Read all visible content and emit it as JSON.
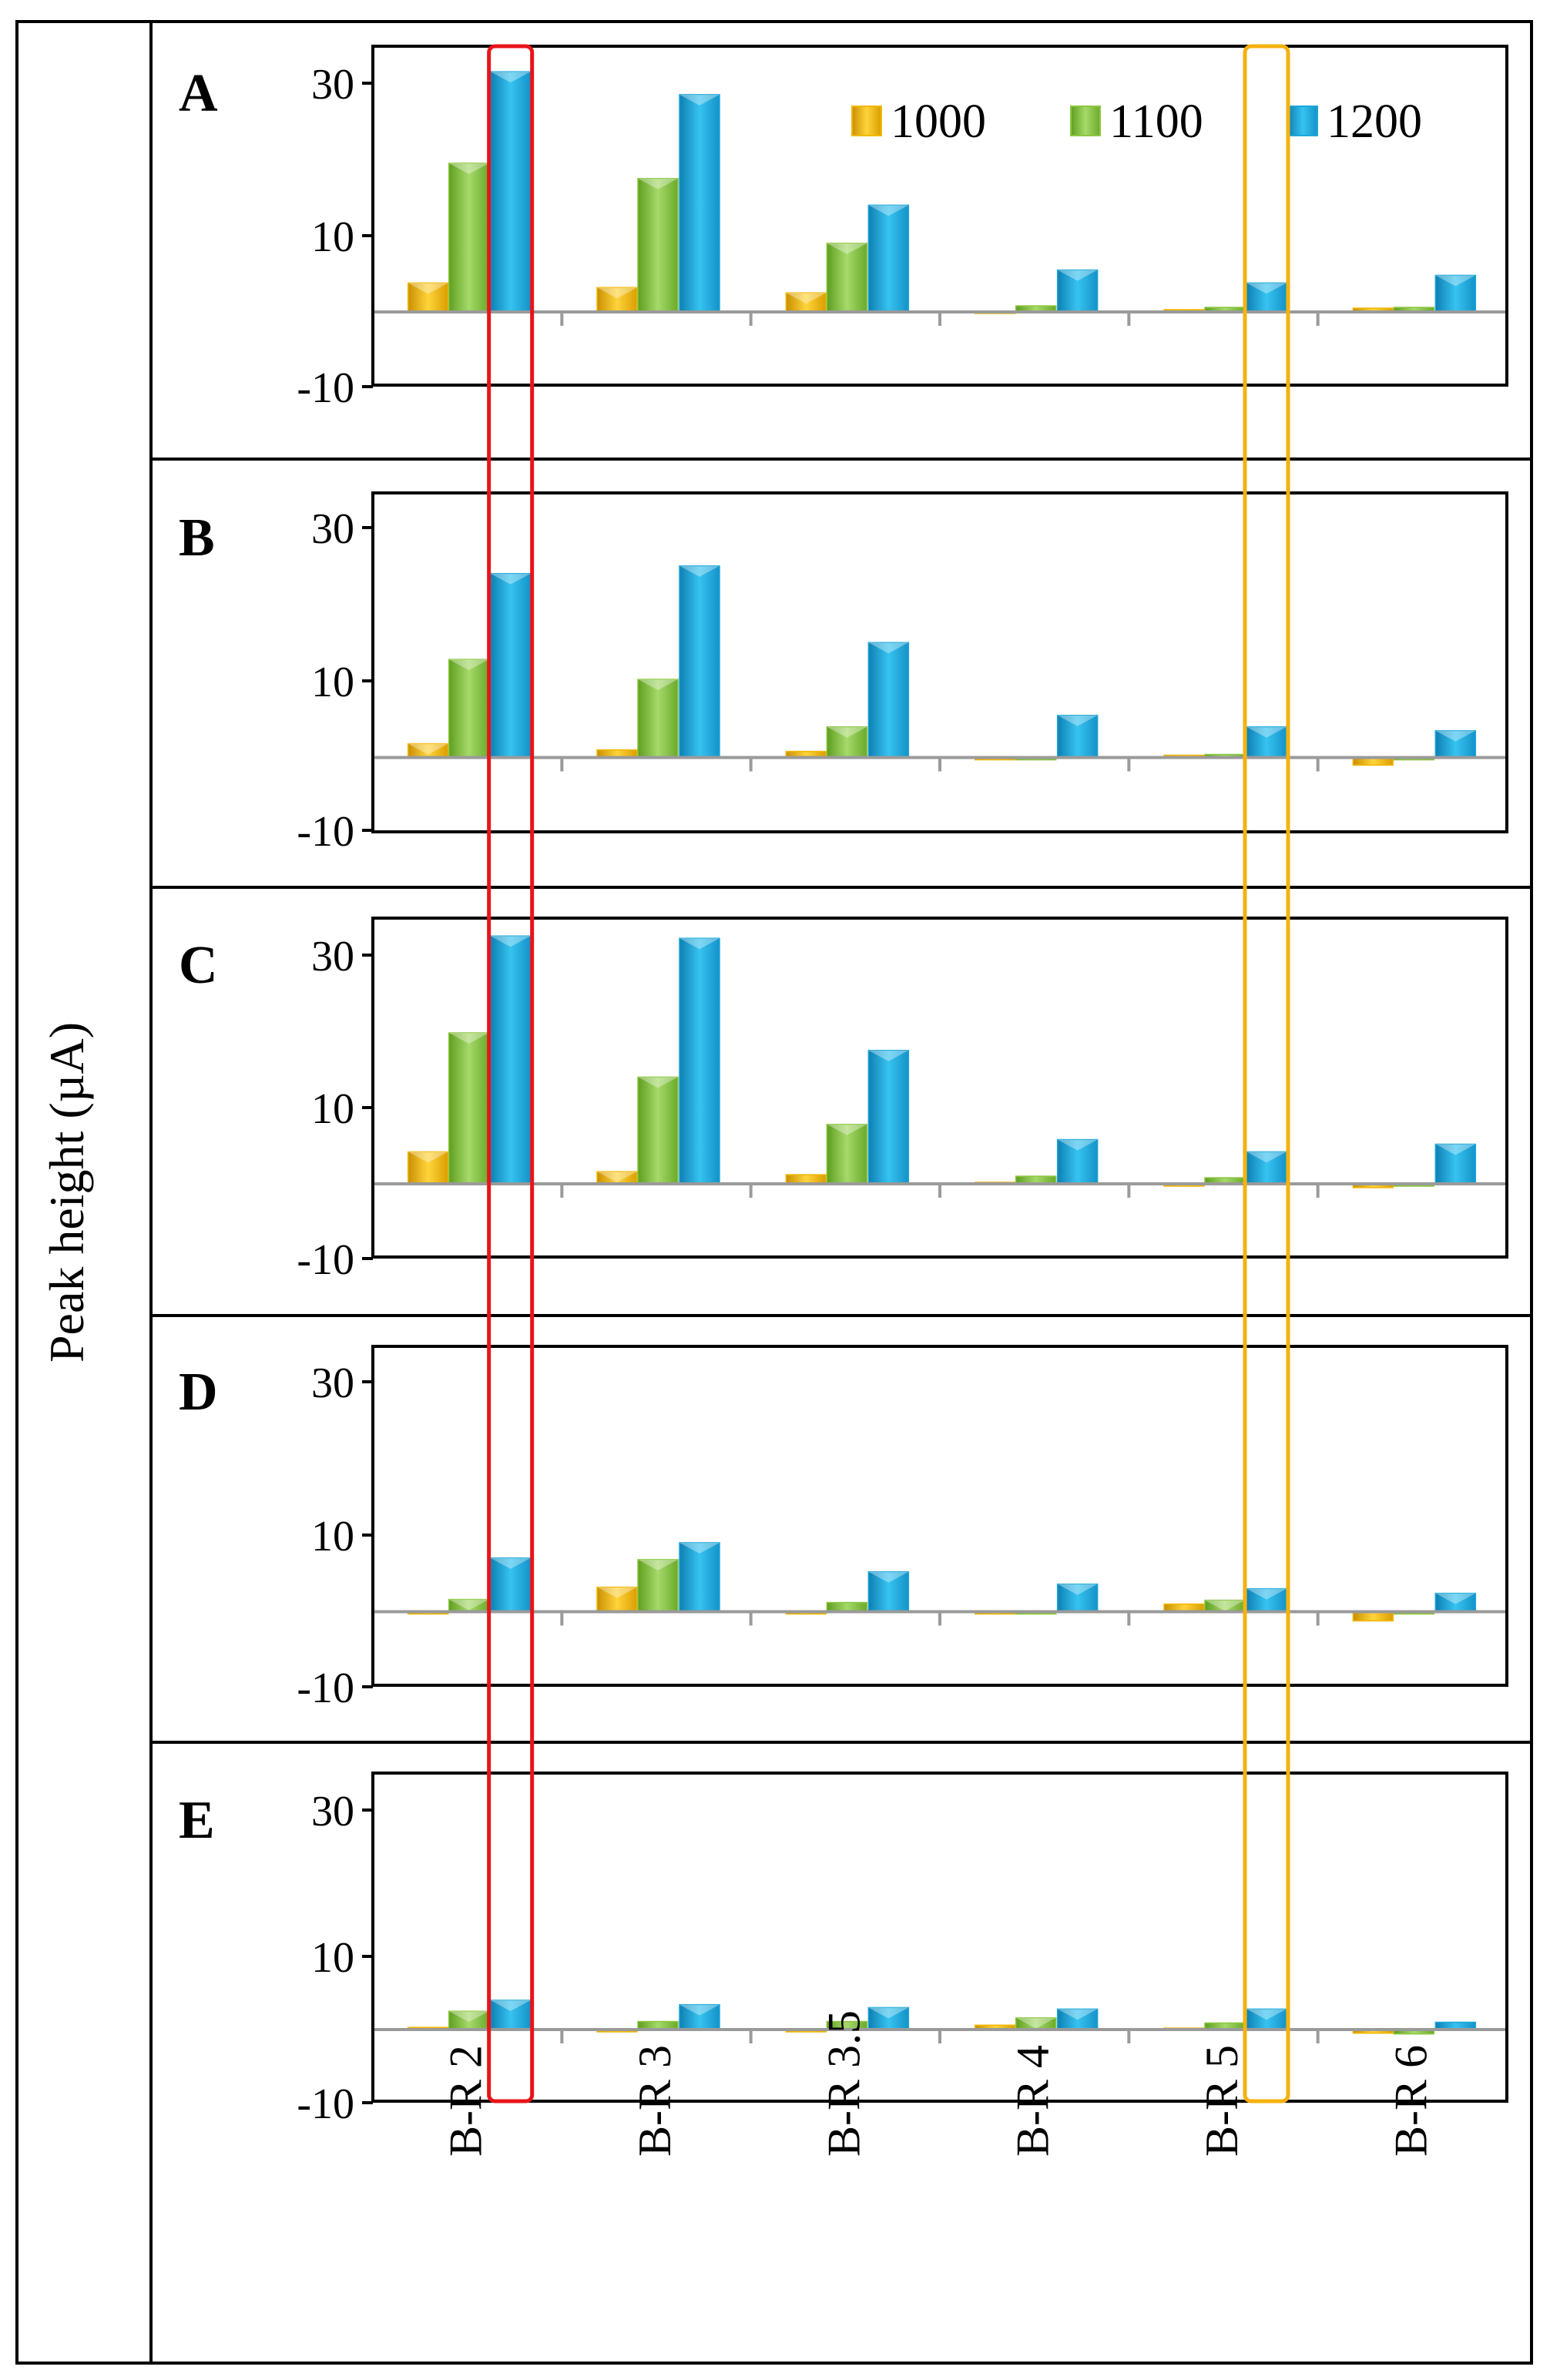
{
  "chart_data": {
    "type": "bar",
    "ylabel": "Peak height (µA)",
    "categories": [
      "B-R 2",
      "B-R 3",
      "B-R 3.5",
      "B-R 4",
      "B-R 5",
      "B-R 6"
    ],
    "legend": {
      "placement": "top-right of panel A",
      "entries": [
        "1000",
        "1100",
        "1200"
      ]
    },
    "yticks": [
      "30",
      "10",
      "-10"
    ],
    "ylim": [
      -10,
      35
    ],
    "series_colors": {
      "1000": "#F2B705",
      "1100": "#8CC63F",
      "1200": "#1BA6D9"
    },
    "highlight_colors": {
      "red": "#E8141B",
      "orange": "#F6B10E"
    },
    "highlights": [
      {
        "category": "B-R 2",
        "color": "red"
      },
      {
        "category": "B-R 5",
        "color": "orange"
      }
    ],
    "panels": [
      {
        "label": "A",
        "series": [
          {
            "name": "1000",
            "values": [
              3.8,
              3.2,
              2.5,
              0.1,
              0.3,
              0.5
            ]
          },
          {
            "name": "1100",
            "values": [
              19.5,
              17.5,
              9.0,
              0.8,
              0.6,
              0.6
            ]
          },
          {
            "name": "1200",
            "values": [
              31.5,
              28.5,
              14.0,
              5.5,
              3.8,
              4.8
            ]
          }
        ]
      },
      {
        "label": "B",
        "series": [
          {
            "name": "1000",
            "values": [
              1.8,
              1.0,
              0.8,
              0.0,
              0.3,
              -1.0
            ]
          },
          {
            "name": "1100",
            "values": [
              12.8,
              10.2,
              4.0,
              0.0,
              0.4,
              0.0
            ]
          },
          {
            "name": "1200",
            "values": [
              24.0,
              25.0,
              15.0,
              5.5,
              4.0,
              3.5
            ]
          }
        ]
      },
      {
        "label": "C",
        "series": [
          {
            "name": "1000",
            "values": [
              4.2,
              1.6,
              1.2,
              0.2,
              0.0,
              -0.5
            ]
          },
          {
            "name": "1100",
            "values": [
              19.8,
              14.0,
              7.8,
              1.0,
              0.8,
              0.0
            ]
          },
          {
            "name": "1200",
            "values": [
              32.5,
              32.2,
              17.5,
              5.8,
              4.2,
              5.2
            ]
          }
        ]
      },
      {
        "label": "D",
        "series": [
          {
            "name": "1000",
            "values": [
              0.0,
              3.2,
              0.0,
              0.0,
              1.0,
              -1.2
            ]
          },
          {
            "name": "1100",
            "values": [
              1.6,
              6.8,
              1.2,
              0.0,
              1.5,
              0.0
            ]
          },
          {
            "name": "1200",
            "values": [
              7.0,
              9.0,
              5.2,
              3.6,
              3.0,
              2.4
            ]
          }
        ]
      },
      {
        "label": "E",
        "series": [
          {
            "name": "1000",
            "values": [
              0.3,
              0.0,
              0.0,
              0.6,
              0.2,
              -0.5
            ]
          },
          {
            "name": "1100",
            "values": [
              2.5,
              1.1,
              1.1,
              1.6,
              0.9,
              -0.6
            ]
          },
          {
            "name": "1200",
            "values": [
              4.0,
              3.4,
              3.0,
              2.8,
              2.8,
              1.0
            ]
          }
        ]
      }
    ]
  }
}
